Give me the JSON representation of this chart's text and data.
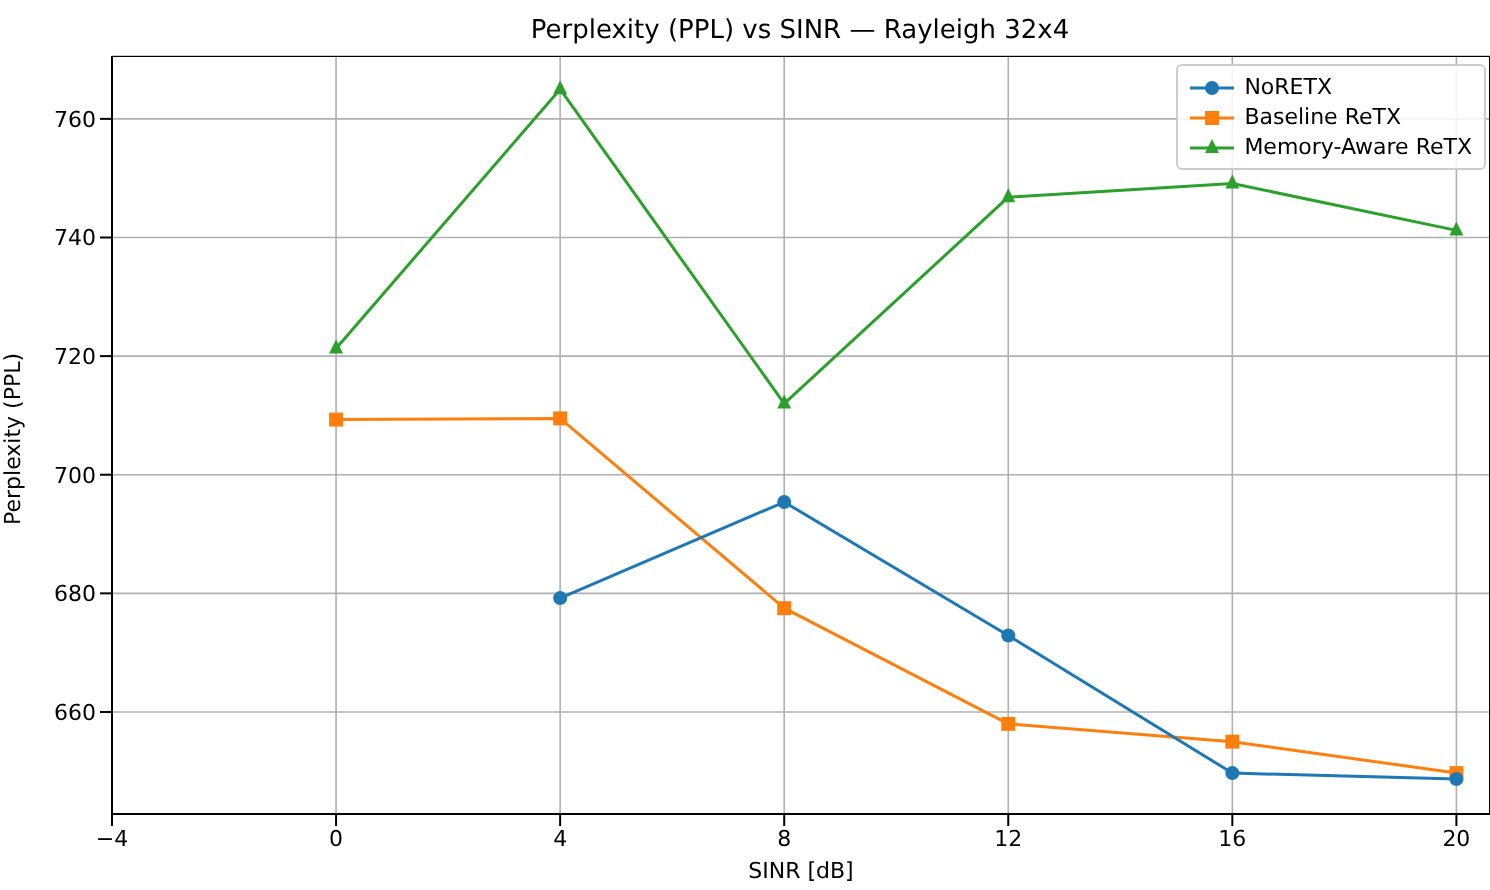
{
  "chart_data": {
    "type": "line",
    "title": "Perplexity (PPL) vs SINR — Rayleigh 32x4",
    "xlabel": "SINR [dB]",
    "ylabel": "Perplexity (PPL)",
    "x": [
      0,
      4,
      8,
      12,
      16,
      20
    ],
    "series": [
      {
        "name": "NoRETX",
        "color": "#1f77b4",
        "marker": "circle",
        "values": [
          null,
          679.2,
          695.4,
          672.9,
          649.7,
          648.7
        ]
      },
      {
        "name": "Baseline ReTX",
        "color": "#ff7f0e",
        "marker": "square",
        "values": [
          709.3,
          709.5,
          677.5,
          658.0,
          655.0,
          649.7
        ]
      },
      {
        "name": "Memory-Aware ReTX",
        "color": "#2ca02c",
        "marker": "triangle",
        "values": [
          721.3,
          765.0,
          712.0,
          746.8,
          749.1,
          741.2
        ]
      }
    ],
    "xlim": [
      -4,
      20.6
    ],
    "xticks": [
      -4,
      0,
      4,
      8,
      12,
      16,
      20
    ],
    "ylim": [
      642.8,
      770.6
    ],
    "yticks": [
      660,
      680,
      700,
      720,
      740,
      760
    ],
    "grid": true,
    "legend": "top right",
    "line_style": "solid"
  }
}
